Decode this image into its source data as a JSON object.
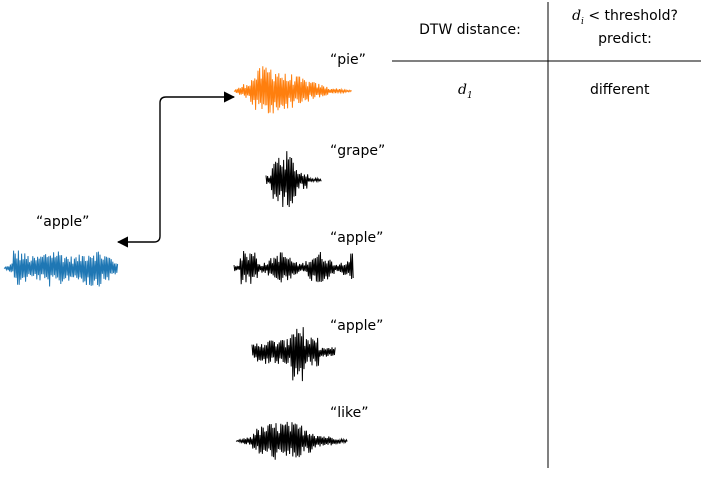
{
  "header": {
    "dtw_col": "DTW distance:",
    "pred_col_var": "d",
    "pred_col_sub": "i",
    "pred_col_rest": " < threshold?",
    "pred_col_line2": "predict:"
  },
  "query": {
    "label": "“apple”",
    "color": "#1f77b4"
  },
  "refs": [
    {
      "label": "“pie”",
      "color": "#ff7f0e"
    },
    {
      "label": "“grape”",
      "color": "#000000"
    },
    {
      "label": "“apple”",
      "color": "#000000"
    },
    {
      "label": "“apple”",
      "color": "#000000"
    },
    {
      "label": "“like”",
      "color": "#000000"
    }
  ],
  "rows": [
    {
      "dist_var": "d",
      "dist_sub": "1",
      "prediction": "different"
    }
  ]
}
